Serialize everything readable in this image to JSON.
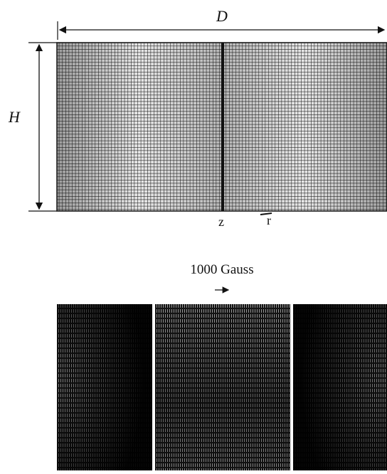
{
  "mesh": {
    "width_label": "D",
    "height_label": "H",
    "axial_label": "z",
    "radial_label": "r"
  },
  "field": {
    "scale_label": "1000 Gauss"
  }
}
